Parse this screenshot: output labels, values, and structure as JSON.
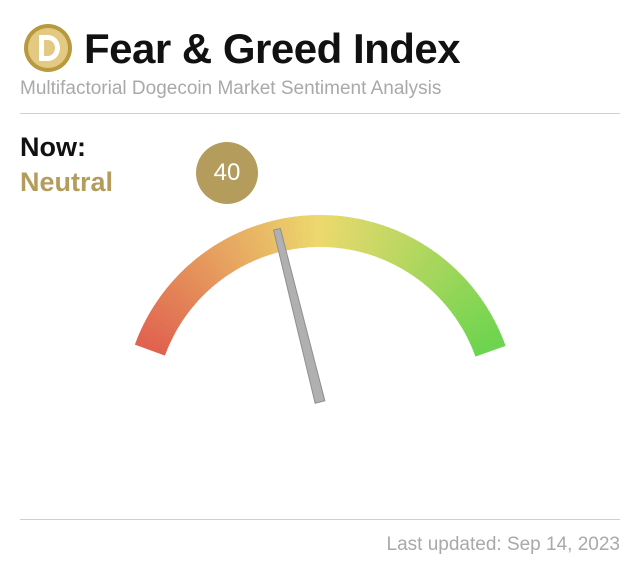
{
  "header": {
    "logo_icon": "dogecoin-logo-icon",
    "title": "Fear & Greed Index",
    "subtitle": "Multifactorial Dogecoin Market Sentiment Analysis"
  },
  "current": {
    "label": "Now:",
    "classification": "Neutral",
    "value_text": "40"
  },
  "footer": {
    "last_updated": "Last updated: Sep 14, 2023"
  },
  "colors": {
    "accent": "#b49d5c",
    "fear": "#e0624f",
    "neutral": "#ecd96e",
    "greed": "#6cd44e"
  },
  "chart_data": {
    "type": "gauge",
    "value": 40,
    "min": 0,
    "max": 100,
    "classification": "Neutral"
  }
}
